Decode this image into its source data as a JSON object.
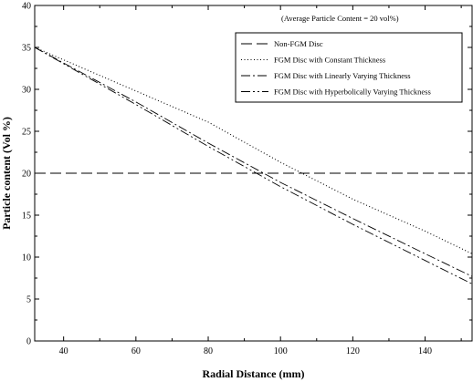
{
  "chart_data": {
    "type": "line",
    "title": "",
    "annotation": "(Average Particle Content = 20 vol%)",
    "xlabel": "Radial Distance (mm)",
    "ylabel": "Particle content (Vol %)",
    "xlim": [
      32,
      153
    ],
    "ylim": [
      0,
      40
    ],
    "xticks": [
      40,
      60,
      80,
      100,
      120,
      140
    ],
    "yticks": [
      0,
      5,
      10,
      15,
      20,
      25,
      30,
      35,
      40
    ],
    "grid": false,
    "legend_position": "top-right",
    "series": [
      {
        "name": "Non-FGM Disc",
        "style": "long-dash",
        "x": [
          32,
          153
        ],
        "y": [
          20,
          20
        ]
      },
      {
        "name": "FGM Disc with Constant Thickness",
        "style": "dotted",
        "x": [
          32,
          60,
          80,
          100,
          120,
          140,
          153
        ],
        "y": [
          35,
          29.8,
          26.1,
          21.3,
          16.9,
          13.1,
          10.4
        ]
      },
      {
        "name": "FGM Disc with Linearly Varying Thickness",
        "style": "dash-dot",
        "x": [
          32,
          60,
          80,
          100,
          120,
          140,
          153
        ],
        "y": [
          35,
          28.5,
          23.6,
          18.9,
          14.6,
          10.4,
          7.7
        ]
      },
      {
        "name": "FGM Disc with Hyperbolically Varying Thickness",
        "style": "dash-dot-dot",
        "x": [
          32,
          60,
          80,
          100,
          120,
          140,
          153
        ],
        "y": [
          35,
          28.2,
          23.2,
          18.4,
          13.9,
          9.6,
          6.8
        ]
      }
    ]
  }
}
